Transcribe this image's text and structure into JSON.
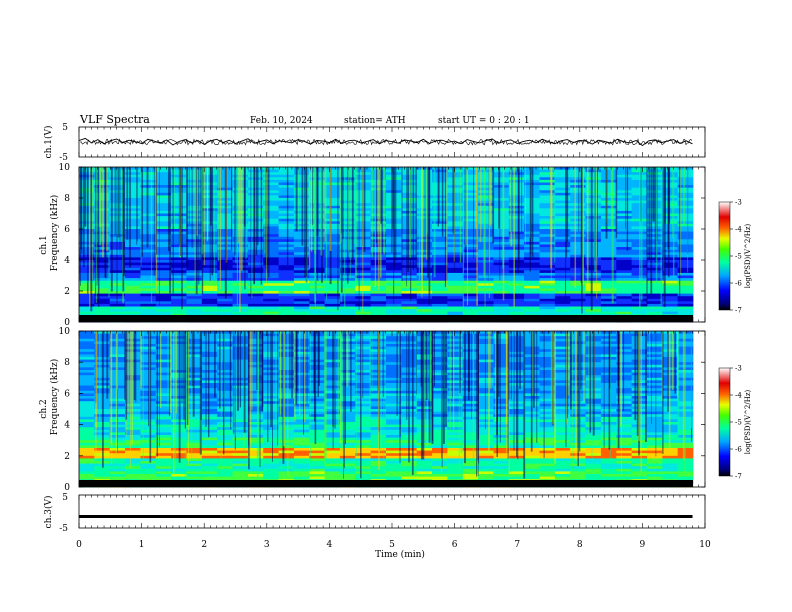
{
  "header": {
    "title": "VLF  Spectra",
    "date": "Feb. 10, 2024",
    "station": "station= ATH",
    "start_ut": "start  UT  =    0  : 20 : 1"
  },
  "chart_data": [
    {
      "type": "line",
      "name": "ch1-waveform",
      "ylabel": "ch.1(V)",
      "ylim": [
        -5,
        5
      ],
      "yticks": [
        "5",
        "-5"
      ],
      "xlim": [
        0,
        10
      ],
      "x": [
        0,
        0.1,
        0.2,
        0.3,
        0.4,
        0.5,
        0.6,
        0.7,
        0.8,
        0.9,
        1.0,
        1.1,
        1.2,
        1.3,
        1.4,
        1.5,
        1.6,
        1.7,
        1.8,
        1.9,
        2.0,
        2.1,
        2.2,
        2.3,
        2.4,
        2.5,
        2.6,
        2.7,
        2.8,
        2.9,
        3.0,
        3.1,
        3.2,
        3.3,
        3.4,
        3.5,
        3.6,
        3.7,
        3.8,
        3.9,
        4.0,
        4.1,
        4.2,
        4.3,
        4.4,
        4.5,
        4.6,
        4.7,
        4.8,
        4.9,
        5.0,
        5.1,
        5.2,
        5.3,
        5.4,
        5.5,
        5.6,
        5.7,
        5.8,
        5.9,
        6.0,
        6.1,
        6.2,
        6.3,
        6.4,
        6.5,
        6.6,
        6.7,
        6.8,
        6.9,
        7.0,
        7.1,
        7.2,
        7.3,
        7.4,
        7.5,
        7.6,
        7.7,
        7.8,
        7.9,
        8.0,
        8.1,
        8.2,
        8.3,
        8.4,
        8.5,
        8.6,
        8.7,
        8.8,
        8.9,
        9.0,
        9.1,
        9.2,
        9.3,
        9.4,
        9.5,
        9.6,
        9.7,
        9.8
      ],
      "y": [
        0.5,
        1.2,
        -0.3,
        0.8,
        -0.6,
        0.4,
        1.0,
        -0.2,
        0.6,
        0.1,
        -0.5,
        0.9,
        0.3,
        -0.4,
        0.7,
        -1.0,
        0.2,
        0.8,
        -0.3,
        0.5,
        -0.8,
        0.4,
        0.9,
        -0.2,
        0.6,
        -0.5,
        0.3,
        1.1,
        -0.4,
        0.2,
        0.7,
        -0.6,
        0.4,
        0.1,
        -0.3,
        0.8,
        0.2,
        -0.7,
        0.5,
        0.3,
        -0.2,
        0.9,
        -0.5,
        0.4,
        0.6,
        -0.3,
        0.2,
        0.8,
        -0.6,
        0.5,
        0.1,
        -0.4,
        0.7,
        0.3,
        -0.2,
        0.9,
        -0.5,
        0.4,
        0.6,
        -0.1,
        0.3,
        -0.6,
        0.8,
        0.2,
        -0.3,
        0.5,
        1.0,
        -0.4,
        0.3,
        0.7,
        -0.5,
        0.2,
        0.6,
        -0.3,
        0.9,
        0.1,
        -0.6,
        0.4,
        0.8,
        -0.2,
        0.5,
        0.3,
        -0.7,
        0.6,
        0.2,
        -0.4,
        0.9,
        0.1,
        -0.3,
        0.5,
        -1.2,
        0.4,
        0.7,
        -0.2,
        0.3,
        0.8,
        -0.5,
        0.4,
        -0.6
      ]
    },
    {
      "type": "heatmap",
      "name": "ch1-spectrogram",
      "ylabel": "ch.1",
      "ylabel2": "Frequency  (kHz)",
      "ylim": [
        0,
        10
      ],
      "yticks": [
        "0",
        "2",
        "4",
        "6",
        "8",
        "10"
      ],
      "xlim": [
        0,
        10
      ],
      "colorbar": {
        "label": "log(PSD)(V^2/Hz)",
        "range": [
          -7,
          -3
        ],
        "ticks": [
          "-3",
          "-4",
          "-5",
          "-6",
          "-7"
        ]
      }
    },
    {
      "type": "heatmap",
      "name": "ch2-spectrogram",
      "ylabel": "ch.2",
      "ylabel2": "Frequency  (kHz)",
      "ylim": [
        0,
        10
      ],
      "yticks": [
        "0",
        "2",
        "4",
        "6",
        "8",
        "10"
      ],
      "xlim": [
        0,
        10
      ],
      "colorbar": {
        "label": "log(PSD)(V^2/Hz)",
        "range": [
          -7,
          -3
        ],
        "ticks": [
          "-3",
          "-4",
          "-5",
          "-6",
          "-7"
        ]
      }
    },
    {
      "type": "line",
      "name": "ch3-waveform",
      "ylabel": "ch.3(V)",
      "ylim": [
        -5,
        5
      ],
      "yticks": [
        "5",
        "-5"
      ],
      "xlim": [
        0,
        10
      ],
      "x": [
        0,
        9.8
      ],
      "y": [
        -1.5,
        -1.5
      ]
    }
  ],
  "xaxis": {
    "label": "Time  (min)",
    "ticks": [
      "0",
      "1",
      "2",
      "3",
      "4",
      "5",
      "6",
      "7",
      "8",
      "9",
      "10"
    ]
  },
  "colors": {
    "background": "#ffffff",
    "trace": "#000000"
  }
}
